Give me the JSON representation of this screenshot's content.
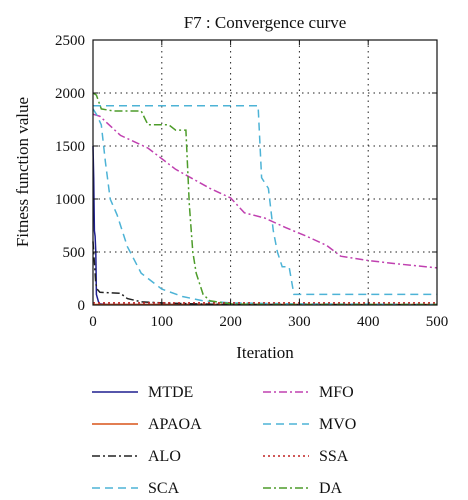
{
  "chart_data": {
    "type": "line",
    "title": "F7 : Convergence curve",
    "xlabel": "Iteration",
    "ylabel": "Fitness function value",
    "xlim": [
      0,
      500
    ],
    "ylim": [
      0,
      2500
    ],
    "xticks": [
      "0",
      "100",
      "200",
      "300",
      "400",
      "500"
    ],
    "yticks": [
      "0",
      "500",
      "1000",
      "1500",
      "2000",
      "2500"
    ],
    "grid": true,
    "legend_position": "below",
    "series": [
      {
        "name": "MTDE",
        "color": "#1f1f8f",
        "dash": "solid",
        "points": [
          [
            0,
            1500
          ],
          [
            1,
            1200
          ],
          [
            2,
            700
          ],
          [
            3,
            650
          ],
          [
            4,
            500
          ],
          [
            5,
            100
          ],
          [
            8,
            30
          ],
          [
            10,
            10
          ],
          [
            20,
            5
          ],
          [
            500,
            2
          ]
        ]
      },
      {
        "name": "APAOA",
        "color": "#d95319",
        "dash": "solid",
        "points": [
          [
            0,
            5
          ],
          [
            500,
            5
          ]
        ]
      },
      {
        "name": "ALO",
        "color": "#222222",
        "dash": "dashdot",
        "points": [
          [
            0,
            600
          ],
          [
            2,
            400
          ],
          [
            4,
            200
          ],
          [
            6,
            150
          ],
          [
            10,
            120
          ],
          [
            40,
            110
          ],
          [
            50,
            60
          ],
          [
            70,
            30
          ],
          [
            100,
            20
          ],
          [
            150,
            10
          ],
          [
            200,
            5
          ],
          [
            500,
            2
          ]
        ]
      },
      {
        "name": "SCA",
        "color": "#4db3d6",
        "dash": "dashed",
        "points": [
          [
            0,
            1880
          ],
          [
            10,
            1880
          ],
          [
            240,
            1880
          ],
          [
            245,
            1200
          ],
          [
            255,
            1100
          ],
          [
            262,
            700
          ],
          [
            268,
            500
          ],
          [
            275,
            360
          ],
          [
            285,
            360
          ],
          [
            292,
            100
          ],
          [
            500,
            100
          ]
        ]
      },
      {
        "name": "MFO",
        "color": "#c040b0",
        "dash": "dashdot",
        "points": [
          [
            0,
            1800
          ],
          [
            10,
            1780
          ],
          [
            40,
            1600
          ],
          [
            80,
            1480
          ],
          [
            120,
            1280
          ],
          [
            170,
            1100
          ],
          [
            200,
            1010
          ],
          [
            220,
            870
          ],
          [
            250,
            820
          ],
          [
            280,
            730
          ],
          [
            310,
            650
          ],
          [
            340,
            560
          ],
          [
            360,
            460
          ],
          [
            400,
            420
          ],
          [
            440,
            390
          ],
          [
            470,
            370
          ],
          [
            500,
            350
          ]
        ]
      },
      {
        "name": "MVO",
        "color": "#4db3d6",
        "dash": "dashed",
        "points": [
          [
            0,
            1850
          ],
          [
            5,
            1800
          ],
          [
            12,
            1700
          ],
          [
            18,
            1350
          ],
          [
            25,
            1000
          ],
          [
            35,
            850
          ],
          [
            50,
            550
          ],
          [
            70,
            300
          ],
          [
            100,
            150
          ],
          [
            130,
            80
          ],
          [
            160,
            40
          ],
          [
            200,
            20
          ],
          [
            300,
            10
          ],
          [
            500,
            5
          ]
        ]
      },
      {
        "name": "SSA",
        "color": "#c02020",
        "dash": "dotted",
        "points": [
          [
            0,
            20
          ],
          [
            500,
            20
          ]
        ]
      },
      {
        "name": "DA",
        "color": "#4d9c2a",
        "dash": "dashdot",
        "points": [
          [
            0,
            2000
          ],
          [
            5,
            1980
          ],
          [
            12,
            1850
          ],
          [
            30,
            1830
          ],
          [
            70,
            1830
          ],
          [
            80,
            1700
          ],
          [
            110,
            1700
          ],
          [
            120,
            1650
          ],
          [
            135,
            1650
          ],
          [
            140,
            950
          ],
          [
            145,
            500
          ],
          [
            150,
            300
          ],
          [
            160,
            100
          ],
          [
            170,
            40
          ],
          [
            200,
            10
          ],
          [
            250,
            5
          ],
          [
            500,
            5
          ]
        ]
      }
    ]
  }
}
